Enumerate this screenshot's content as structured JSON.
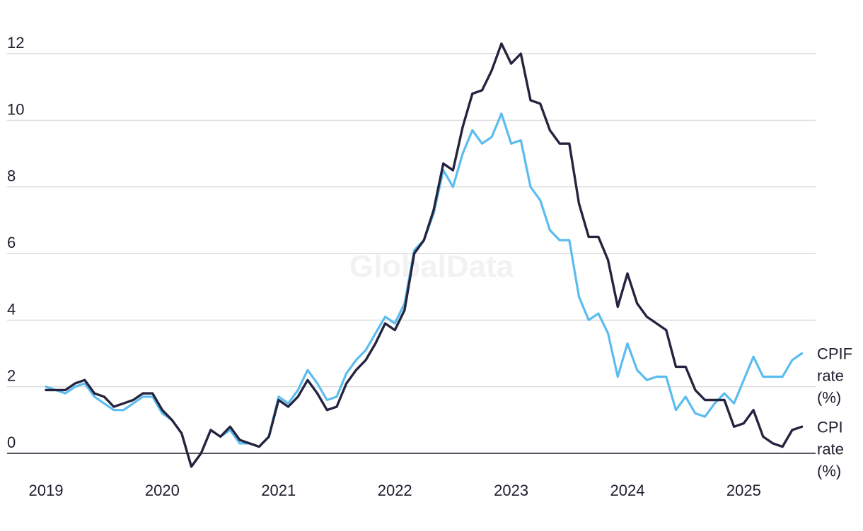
{
  "watermark": "GlobalData",
  "chart_data": {
    "type": "line",
    "title": "",
    "xlabel": "",
    "ylabel": "",
    "ylim": [
      -0.5,
      12.4
    ],
    "yticks": [
      0,
      2,
      4,
      6,
      8,
      10,
      12
    ],
    "xticks": [
      "2019",
      "2020",
      "2021",
      "2022",
      "2023",
      "2024",
      "2025"
    ],
    "x_start": "2019-01",
    "x_frequency": "monthly",
    "grid": true,
    "legend": "none (labels at line ends)",
    "series": [
      {
        "name": "CPIF rate (%)",
        "label_lines": [
          "CPIF",
          "rate",
          "(%)"
        ],
        "color": "#5bbcf0",
        "values": [
          2.0,
          1.9,
          1.8,
          2.0,
          2.1,
          1.7,
          1.5,
          1.3,
          1.3,
          1.5,
          1.7,
          1.7,
          1.2,
          1.0,
          0.6,
          -0.4,
          0.0,
          0.7,
          0.5,
          0.7,
          0.3,
          0.3,
          0.2,
          0.5,
          1.7,
          1.5,
          1.9,
          2.5,
          2.1,
          1.6,
          1.7,
          2.4,
          2.8,
          3.1,
          3.6,
          4.1,
          3.9,
          4.5,
          6.1,
          6.4,
          7.2,
          8.5,
          8.0,
          9.0,
          9.7,
          9.3,
          9.5,
          10.2,
          9.3,
          9.4,
          8.0,
          7.6,
          6.7,
          6.4,
          6.4,
          4.7,
          4.0,
          4.2,
          3.6,
          2.3,
          3.3,
          2.5,
          2.2,
          2.3,
          2.3,
          1.3,
          1.7,
          1.2,
          1.1,
          1.5,
          1.8,
          1.5,
          2.2,
          2.9,
          2.3,
          2.3,
          2.3,
          2.8,
          3.0
        ]
      },
      {
        "name": "CPI rate (%)",
        "label_lines": [
          "CPI",
          "rate",
          "(%)"
        ],
        "color": "#24243f",
        "values": [
          1.9,
          1.9,
          1.9,
          2.1,
          2.2,
          1.8,
          1.7,
          1.4,
          1.5,
          1.6,
          1.8,
          1.8,
          1.3,
          1.0,
          0.6,
          -0.4,
          0.0,
          0.7,
          0.5,
          0.8,
          0.4,
          0.3,
          0.2,
          0.5,
          1.6,
          1.4,
          1.7,
          2.2,
          1.8,
          1.3,
          1.4,
          2.1,
          2.5,
          2.8,
          3.3,
          3.9,
          3.7,
          4.3,
          6.0,
          6.4,
          7.3,
          8.7,
          8.5,
          9.8,
          10.8,
          10.9,
          11.5,
          12.3,
          11.7,
          12.0,
          10.6,
          10.5,
          9.7,
          9.3,
          9.3,
          7.5,
          6.5,
          6.5,
          5.8,
          4.4,
          5.4,
          4.5,
          4.1,
          3.9,
          3.7,
          2.6,
          2.6,
          1.9,
          1.6,
          1.6,
          1.6,
          0.8,
          0.9,
          1.3,
          0.5,
          0.3,
          0.2,
          0.7,
          0.8
        ]
      }
    ]
  }
}
